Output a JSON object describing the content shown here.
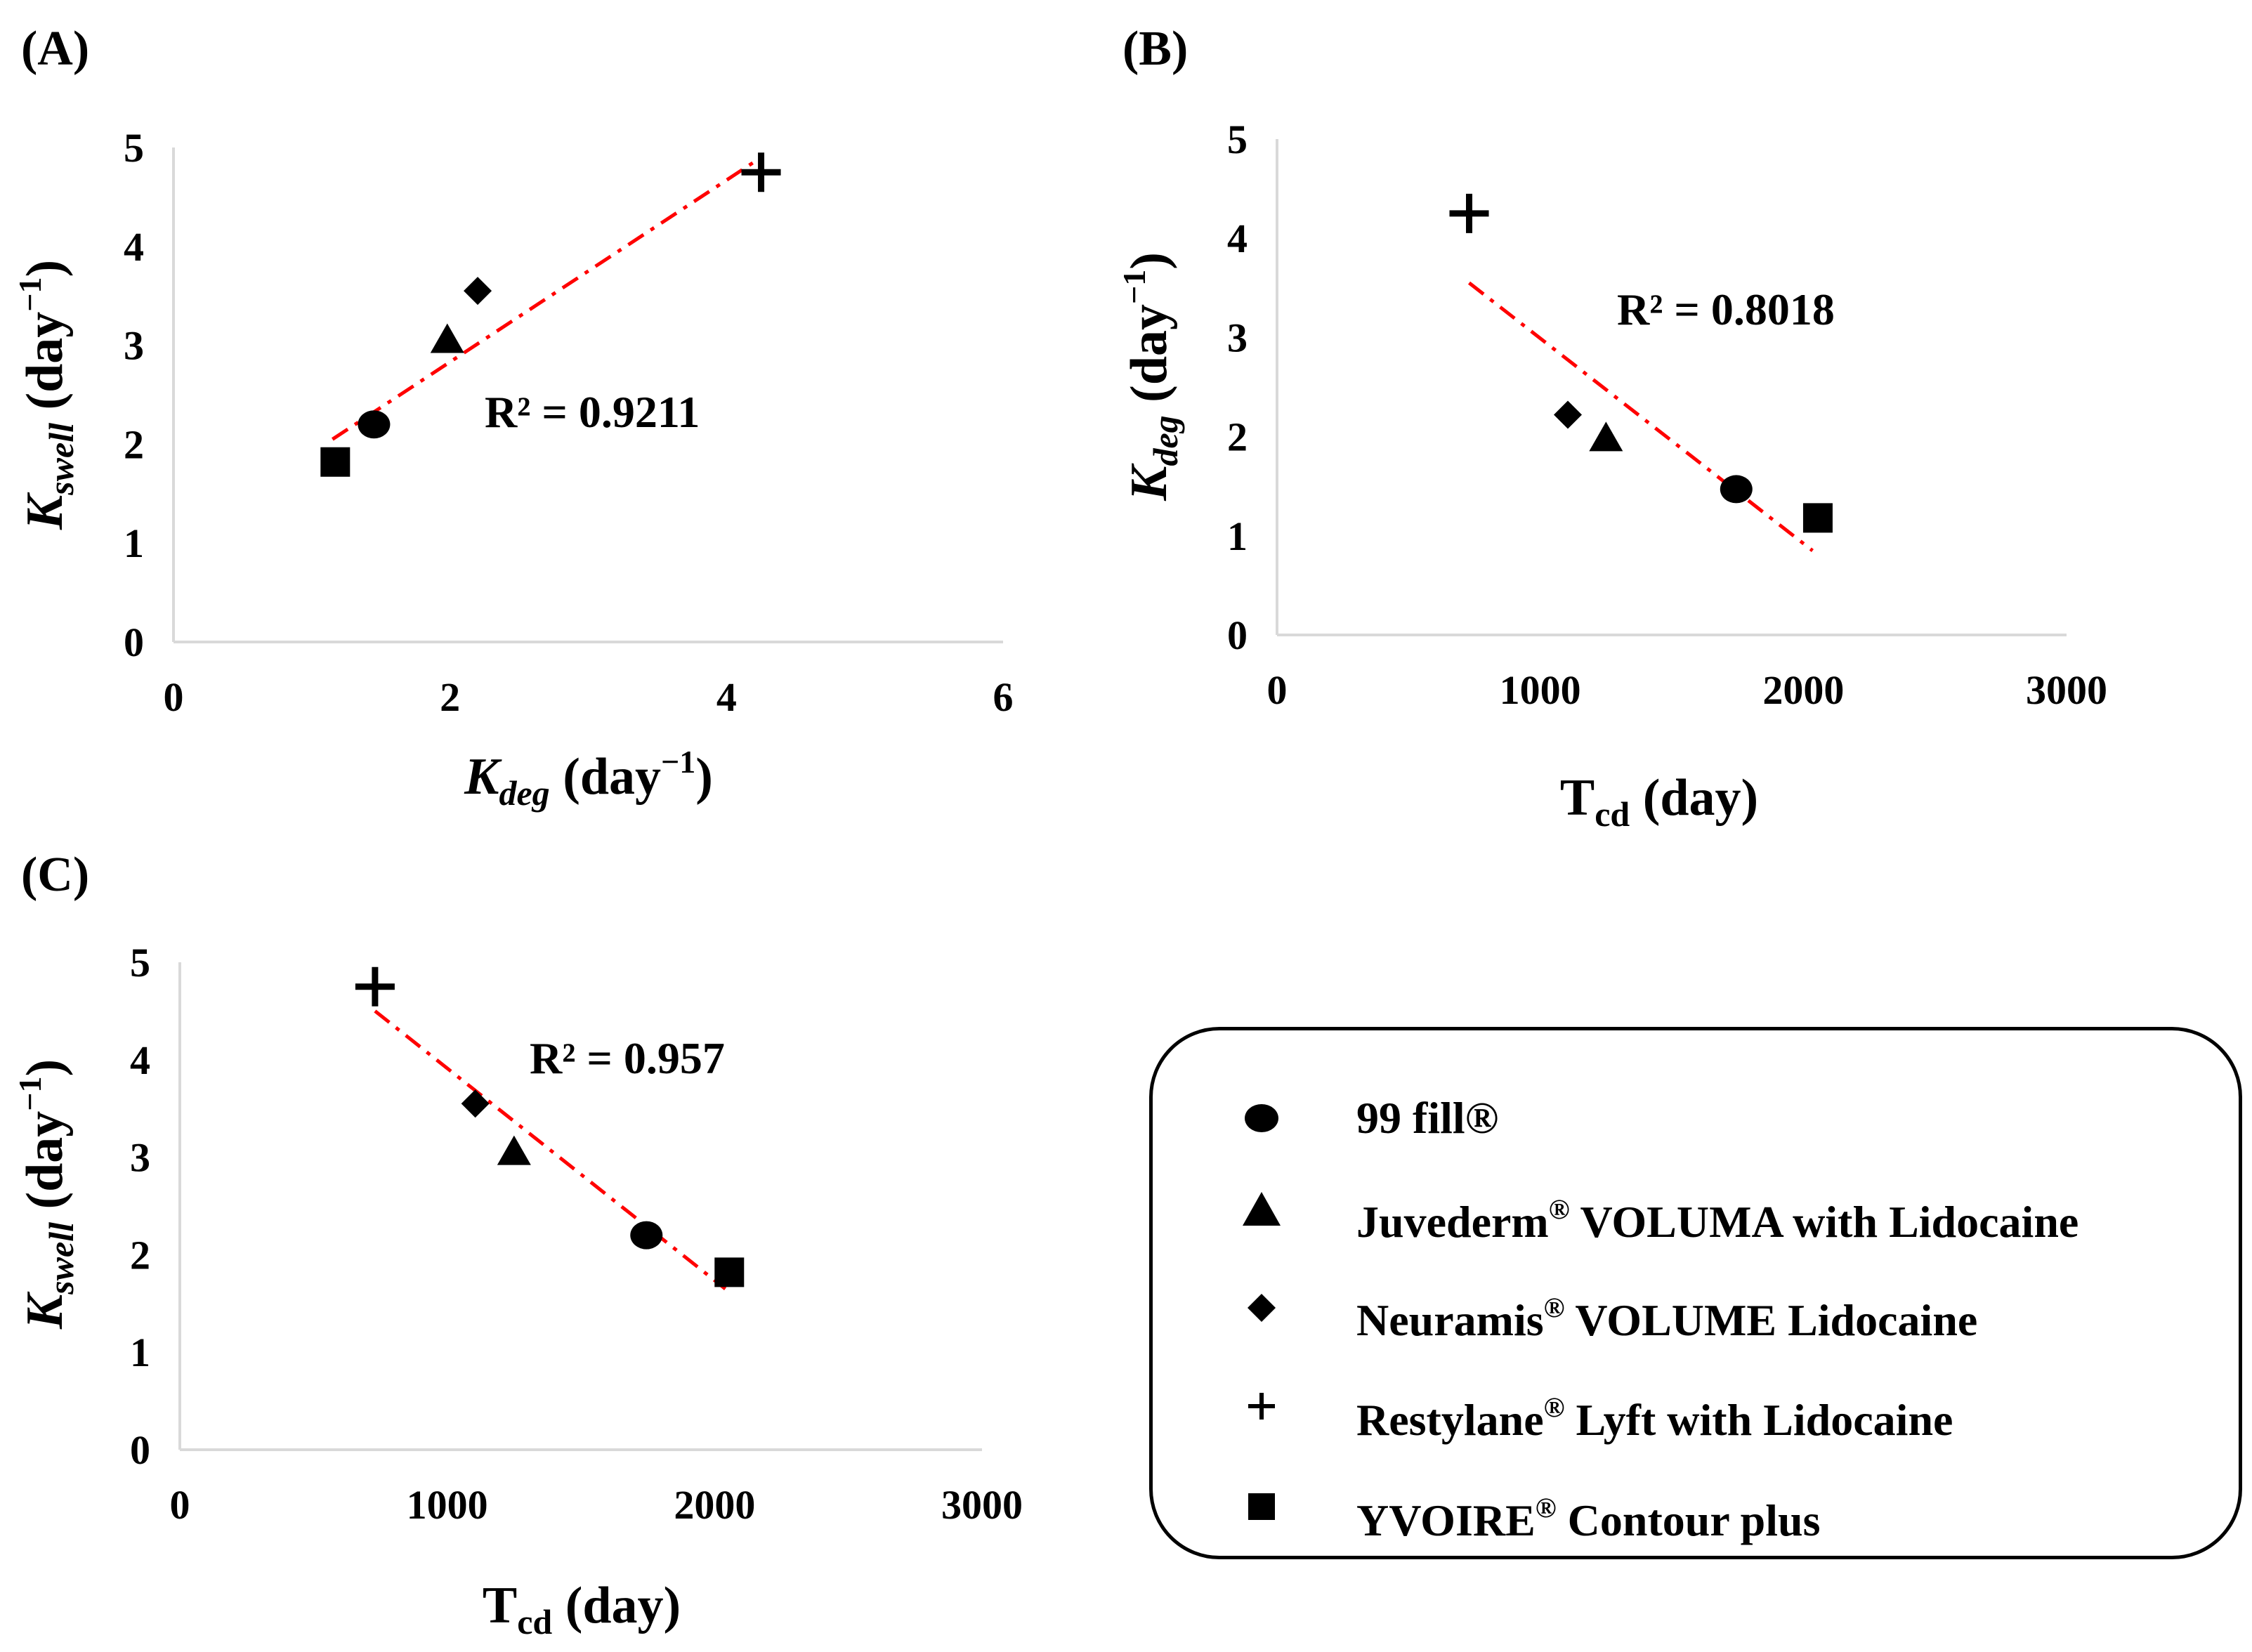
{
  "figure": {
    "panel_labels": [
      "(A)",
      "(B)",
      "(C)"
    ]
  },
  "legend": {
    "items": [
      {
        "name": "99 fill®",
        "brand": "99 fill®",
        "suffix": "",
        "marker": "circle"
      },
      {
        "name": "Juvederm® VOLUMA with Lidocaine",
        "brand": "Juvederm",
        "suffix": " VOLUMA with Lidocaine",
        "marker": "triangle"
      },
      {
        "name": "Neuramis® VOLUME Lidocaine",
        "brand": "Neuramis",
        "suffix": " VOLUME Lidocaine",
        "marker": "diamond"
      },
      {
        "name": "Restylane® Lyft with Lidocaine",
        "brand": "Restylane",
        "suffix": " Lyft with Lidocaine",
        "marker": "plus"
      },
      {
        "name": "YVOIRE® Contour plus",
        "brand": "YVOIRE",
        "suffix": " Contour plus",
        "marker": "square"
      }
    ],
    "reg_mark": "®"
  },
  "colors": {
    "trendline": "#ff0000",
    "marker": "#000000",
    "axis": "#d9d9d9"
  },
  "chart_data": [
    {
      "panel": "(A)",
      "type": "scatter",
      "xlabel_main": "K",
      "xlabel_sub": "deg",
      "xlabel_unit": " (day",
      "xlabel_exp": "−1",
      "xlabel_close": ")",
      "ylabel_main": "K",
      "ylabel_sub": "swell",
      "ylabel_unit": " (day",
      "ylabel_exp": "−1",
      "ylabel_close": ")",
      "xlim": [
        0,
        6
      ],
      "ylim": [
        0,
        5
      ],
      "xticks": [
        0,
        2,
        4,
        6
      ],
      "yticks": [
        0,
        1,
        2,
        3,
        4,
        5
      ],
      "xtick_labels": [
        "0",
        "2",
        "4",
        "6"
      ],
      "ytick_labels": [
        "0",
        "1",
        "2",
        "3",
        "4",
        "5"
      ],
      "points": [
        {
          "series": "99 fill®",
          "marker": "circle",
          "x": 1.45,
          "y": 2.2
        },
        {
          "series": "Juvederm® VOLUMA with Lidocaine",
          "marker": "triangle",
          "x": 1.98,
          "y": 3.05
        },
        {
          "series": "Neuramis® VOLUME Lidocaine",
          "marker": "diamond",
          "x": 2.2,
          "y": 3.55
        },
        {
          "series": "Restylane® Lyft with Lidocaine",
          "marker": "plus",
          "x": 4.25,
          "y": 4.75
        },
        {
          "series": "YVOIRE® Contour plus",
          "marker": "square",
          "x": 1.17,
          "y": 1.82
        }
      ],
      "trendline": {
        "x": [
          1.15,
          4.25
        ],
        "y": [
          2.05,
          4.9
        ]
      },
      "r2_label": "R² = 0.9211"
    },
    {
      "panel": "(B)",
      "type": "scatter",
      "xlabel_main": "T",
      "xlabel_sub": "cd",
      "xlabel_unit": " (day)",
      "xlabel_exp": "",
      "xlabel_close": "",
      "ylabel_main": "K",
      "ylabel_sub": "deg",
      "ylabel_unit": " (day",
      "ylabel_exp": "−1",
      "ylabel_close": ")",
      "xlim": [
        0,
        3000
      ],
      "ylim": [
        0,
        5
      ],
      "xticks": [
        0,
        1000,
        2000,
        3000
      ],
      "yticks": [
        0,
        1,
        2,
        3,
        4,
        5
      ],
      "xtick_labels": [
        "0",
        "1000",
        "2000",
        "3000"
      ],
      "ytick_labels": [
        "0",
        "1",
        "2",
        "3",
        "4",
        "5"
      ],
      "points": [
        {
          "series": "99 fill®",
          "marker": "circle",
          "x": 1745,
          "y": 1.47
        },
        {
          "series": "Juvederm® VOLUMA with Lidocaine",
          "marker": "triangle",
          "x": 1250,
          "y": 1.98
        },
        {
          "series": "Neuramis® VOLUME Lidocaine",
          "marker": "diamond",
          "x": 1105,
          "y": 2.22
        },
        {
          "series": "Restylane® Lyft with Lidocaine",
          "marker": "plus",
          "x": 730,
          "y": 4.25
        },
        {
          "series": "YVOIRE® Contour plus",
          "marker": "square",
          "x": 2055,
          "y": 1.18
        }
      ],
      "trendline": {
        "x": [
          730,
          2035
        ],
        "y": [
          3.55,
          0.85
        ]
      },
      "r2_label": "R² = 0.8018"
    },
    {
      "panel": "(C)",
      "type": "scatter",
      "xlabel_main": "T",
      "xlabel_sub": "cd",
      "xlabel_unit": " (day)",
      "xlabel_exp": "",
      "xlabel_close": "",
      "ylabel_main": "K",
      "ylabel_sub": "swell",
      "ylabel_unit": " (day",
      "ylabel_exp": "−1",
      "ylabel_close": ")",
      "xlim": [
        0,
        3000
      ],
      "ylim": [
        0,
        5
      ],
      "xticks": [
        0,
        1000,
        2000,
        3000
      ],
      "yticks": [
        0,
        1,
        2,
        3,
        4,
        5
      ],
      "xtick_labels": [
        "0",
        "1000",
        "2000",
        "3000"
      ],
      "ytick_labels": [
        "0",
        "1",
        "2",
        "3",
        "4",
        "5"
      ],
      "points": [
        {
          "series": "99 fill®",
          "marker": "circle",
          "x": 1745,
          "y": 2.2
        },
        {
          "series": "Juvederm® VOLUMA with Lidocaine",
          "marker": "triangle",
          "x": 1250,
          "y": 3.05
        },
        {
          "series": "Neuramis® VOLUME Lidocaine",
          "marker": "diamond",
          "x": 1105,
          "y": 3.55
        },
        {
          "series": "Restylane® Lyft with Lidocaine",
          "marker": "plus",
          "x": 730,
          "y": 4.75
        },
        {
          "series": "YVOIRE® Contour plus",
          "marker": "square",
          "x": 2055,
          "y": 1.82
        }
      ],
      "trendline": {
        "x": [
          730,
          2040
        ],
        "y": [
          4.5,
          1.65
        ]
      },
      "r2_label": "R² = 0.957"
    }
  ]
}
